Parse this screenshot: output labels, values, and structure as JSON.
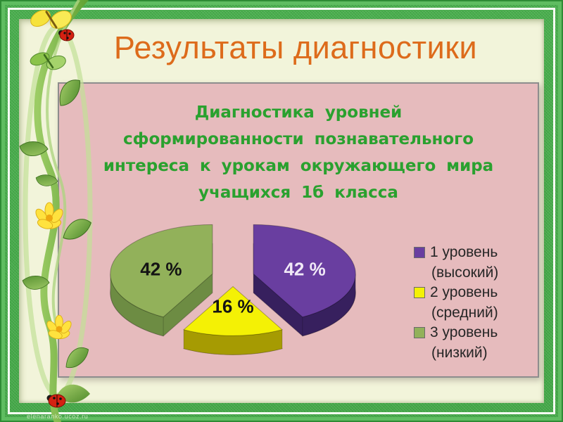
{
  "slide": {
    "title": "Результаты диагностики",
    "watermark": "elenaranko.ucoz.ru"
  },
  "colors": {
    "title_text": "#dd6b1b",
    "chart_title_text": "#2aa12f",
    "panel_background": "#e6bbbd",
    "panel_border": "#8d8d8d",
    "slide_background": "#f2f4da",
    "frame_green": "#49ad4d"
  },
  "decorations": [
    "vine",
    "butterfly",
    "ladybug",
    "flower",
    "leaf"
  ],
  "chart_data": {
    "type": "pie",
    "effect": "3d-exploded",
    "title": "Диагностика уровней сформированности познавательного интереса к урокам окружающего мира учащихся 1б класса",
    "title_lines": [
      "Диагностика уровней",
      "сформированности познавательного",
      "интереса к урокам окружающего мира",
      "учащихся 1б класса"
    ],
    "start_angle": -90,
    "legend_position": "right",
    "slices": [
      {
        "name": "1 уровень (высокий)",
        "value": 42,
        "display": "42 %",
        "color": "#693ea0",
        "side_color": "#37205e",
        "label_color": "#f1e9f7"
      },
      {
        "name": "2 уровень (средний)",
        "value": 16,
        "display": "16 %",
        "color": "#f4f105",
        "side_color": "#a69b02",
        "label_color": "#141414"
      },
      {
        "name": "3 уровень (низкий)",
        "value": 42,
        "display": "42 %",
        "color": "#92b15a",
        "side_color": "#6d8c43",
        "label_color": "#141414"
      }
    ]
  },
  "legend": {
    "items": [
      {
        "line1": "1 уровень",
        "line2": "(высокий)"
      },
      {
        "line1": "2 уровень",
        "line2": "(средний)"
      },
      {
        "line1": "3 уровень",
        "line2": "(низкий)"
      }
    ]
  }
}
